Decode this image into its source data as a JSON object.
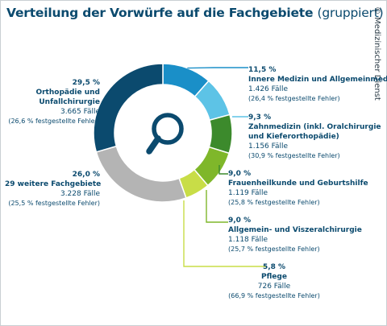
{
  "title": "Verteilung der Vorwürfe auf die Fachgebiete",
  "subtitle": "(gruppiert)",
  "credit": "© Medizinischer Dienst",
  "chart_data": {
    "type": "pie",
    "donut": true,
    "title": "Verteilung der Vorwürfe auf die Fachgebiete (gruppiert)",
    "categories": [
      "Innere Medizin und Allgemeinmedizin",
      "Zahnmedizin (inkl. Oralchirurgie und Kieferorthopädie)",
      "Frauenheilkunde und Geburtshilfe",
      "Allgemein- und Viszeralchirurgie",
      "Pflege",
      "29 weitere Fachgebiete",
      "Orthopädie und Unfallchirurgie"
    ],
    "values": [
      11.5,
      9.3,
      9.0,
      9.0,
      5.8,
      26.0,
      29.5
    ],
    "colors": [
      "#1a8fc8",
      "#5dc3e6",
      "#3c8a2c",
      "#7fb72a",
      "#c8dd47",
      "#b4b4b4",
      "#0b4a6e"
    ],
    "slices": [
      {
        "pct": "11,5 %",
        "name": "Innere Medizin und Allgemeinmedizin",
        "name2": "",
        "count": "1.426 Fälle",
        "err": "(26,4 % festgestellte Fehler)"
      },
      {
        "pct": "9,3 %",
        "name": "Zahnmedizin (inkl. Oralchirurgie",
        "name2": "und Kieferorthopädie)",
        "count": "1.156 Fälle",
        "err": "(30,9 % festgestellte Fehler)"
      },
      {
        "pct": "9,0 %",
        "name": "Frauenheilkunde und Geburtshilfe",
        "name2": "",
        "count": "1.119 Fälle",
        "err": "(25,8 % festgestellte Fehler)"
      },
      {
        "pct": "9,0 %",
        "name": "Allgemein- und Viszeralchirurgie",
        "name2": "",
        "count": "1.118 Fälle",
        "err": "(25,7 % festgestellte Fehler)"
      },
      {
        "pct": "5,8 %",
        "name": "Pflege",
        "name2": "",
        "count": "726 Fälle",
        "err": "(66,9 % festgestellte Fehler)"
      },
      {
        "pct": "26,0 %",
        "name": "29 weitere Fachgebiete",
        "name2": "",
        "count": "3.228 Fälle",
        "err": "(25,5 % festgestellte Fehler)"
      },
      {
        "pct": "29,5 %",
        "name": "Orthopädie und",
        "name2": "Unfallchirurgie",
        "count": "3.665 Fälle",
        "err": "(26,6 % festgestellte Fehler)"
      }
    ],
    "center_icon": "magnifier-icon"
  }
}
